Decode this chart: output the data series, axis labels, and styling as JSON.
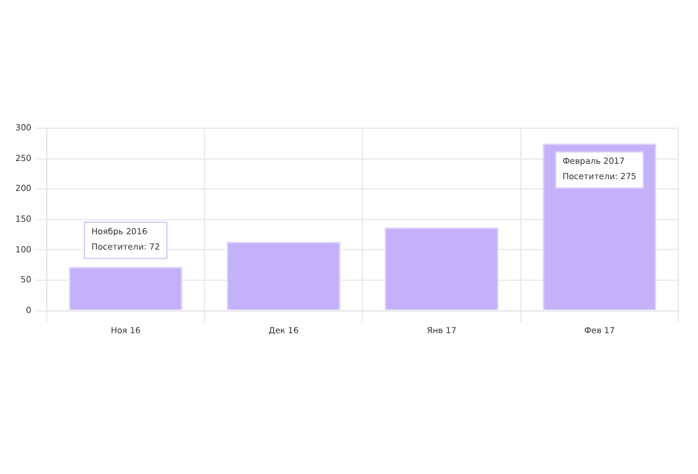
{
  "chart_data": {
    "type": "bar",
    "categories": [
      "Ноя 16",
      "Дек 16",
      "Янв 17",
      "Фев 17"
    ],
    "values": [
      72,
      113,
      137,
      275
    ],
    "color": "#c4b1f9",
    "ylim": [
      0,
      300
    ],
    "yticks": [
      0,
      50,
      100,
      150,
      200,
      250,
      300
    ],
    "grid": true,
    "legend": false,
    "annotations": [
      {
        "text": "Ноябрь 2016\nПосетители: 72",
        "x": "Ноя 16",
        "y": 72
      },
      {
        "text": "Февраль 2017\nПосетители: 275",
        "x": "Фев 17",
        "y": 275
      }
    ]
  }
}
